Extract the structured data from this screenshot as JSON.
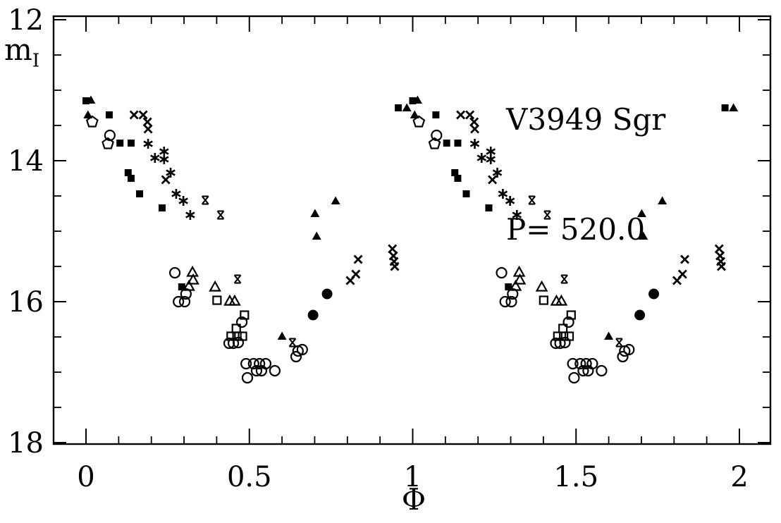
{
  "colors": {
    "foreground": "#000000",
    "background": "#ffffff"
  },
  "chart_data": {
    "type": "scatter",
    "title": "V3949 Sgr",
    "subtitle": "P= 520.0",
    "xlabel": "Φ",
    "ylabel": "m_I",
    "ylabel_base": "m",
    "ylabel_sub": "I",
    "x_axis": "pulsation phase, plotted over two cycles (each point repeated at phase+1)",
    "y_axis": "I-band magnitude, brighter (smaller magnitude) at top",
    "xlim": [
      -0.0993,
      2.095
    ],
    "ylim": [
      11.95,
      18.02
    ],
    "y_inverted_magnitude_axis": true,
    "grid": false,
    "legend": "none",
    "x_major_ticks": [
      0,
      0.5,
      1,
      1.5,
      2
    ],
    "x_tick_labels": [
      "0",
      "0.5",
      "1",
      "1.5",
      "2"
    ],
    "x_minor_step": 0.1,
    "y_major_ticks": [
      12,
      14,
      16,
      18
    ],
    "y_tick_labels": [
      "12",
      "14",
      "16",
      "18"
    ],
    "y_minor_step": 0.5,
    "phase_duplicate_offset": 1.0,
    "series": [
      {
        "name": "filled-squares",
        "marker": "filled-square",
        "points": [
          [
            0.0,
            13.15
          ],
          [
            0.071,
            13.35
          ],
          [
            0.104,
            13.75
          ],
          [
            0.138,
            13.75
          ],
          [
            0.129,
            14.17
          ],
          [
            0.138,
            14.25
          ],
          [
            0.164,
            14.47
          ],
          [
            0.233,
            14.67
          ],
          [
            0.293,
            15.79
          ],
          [
            0.956,
            13.25
          ]
        ]
      },
      {
        "name": "filled-triangles",
        "marker": "filled-triangle",
        "points": [
          [
            0.015,
            13.14
          ],
          [
            0.006,
            13.35
          ],
          [
            0.6,
            16.49
          ],
          [
            0.701,
            14.75
          ],
          [
            0.706,
            15.07
          ],
          [
            0.764,
            14.57
          ],
          [
            0.982,
            13.25
          ]
        ]
      },
      {
        "name": "crosses",
        "marker": "cross",
        "points": [
          [
            0.147,
            13.35
          ],
          [
            0.175,
            13.35
          ],
          [
            0.188,
            13.45
          ],
          [
            0.19,
            13.55
          ],
          [
            0.244,
            14.27
          ],
          [
            0.809,
            15.7
          ],
          [
            0.826,
            15.61
          ],
          [
            0.833,
            15.4
          ],
          [
            0.938,
            15.25
          ],
          [
            0.941,
            15.35
          ],
          [
            0.943,
            15.43
          ],
          [
            0.945,
            15.5
          ]
        ]
      },
      {
        "name": "asterisks",
        "marker": "asterisk",
        "points": [
          [
            0.19,
            13.76
          ],
          [
            0.211,
            13.96
          ],
          [
            0.239,
            13.87
          ],
          [
            0.239,
            13.98
          ],
          [
            0.259,
            14.17
          ],
          [
            0.276,
            14.47
          ],
          [
            0.298,
            14.57
          ],
          [
            0.319,
            14.77
          ]
        ]
      },
      {
        "name": "hourglass-crosses",
        "marker": "hourglass",
        "points": [
          [
            0.365,
            14.56
          ],
          [
            0.412,
            14.77
          ],
          [
            0.464,
            15.68
          ],
          [
            0.632,
            16.58
          ]
        ]
      },
      {
        "name": "open-pentagons",
        "marker": "open-pentagon",
        "points": [
          [
            0.019,
            13.45
          ],
          [
            0.067,
            13.76
          ]
        ]
      },
      {
        "name": "open-circles",
        "marker": "open-circle",
        "points": [
          [
            0.073,
            13.64
          ],
          [
            0.272,
            15.59
          ],
          [
            0.306,
            15.89
          ],
          [
            0.283,
            16.0
          ],
          [
            0.302,
            16.0
          ],
          [
            0.477,
            16.29
          ],
          [
            0.438,
            16.59
          ],
          [
            0.451,
            16.59
          ],
          [
            0.466,
            16.58
          ],
          [
            0.49,
            16.88
          ],
          [
            0.513,
            16.88
          ],
          [
            0.531,
            16.88
          ],
          [
            0.55,
            16.88
          ],
          [
            0.522,
            16.98
          ],
          [
            0.537,
            16.98
          ],
          [
            0.578,
            16.98
          ],
          [
            0.494,
            17.08
          ],
          [
            0.649,
            16.7
          ],
          [
            0.662,
            16.68
          ],
          [
            0.643,
            16.78
          ]
        ]
      },
      {
        "name": "open-triangles",
        "marker": "open-triangle",
        "points": [
          [
            0.326,
            15.58
          ],
          [
            0.328,
            15.69
          ],
          [
            0.315,
            15.78
          ],
          [
            0.395,
            15.79
          ],
          [
            0.44,
            15.99
          ],
          [
            0.455,
            15.99
          ]
        ]
      },
      {
        "name": "open-squares",
        "marker": "open-square",
        "points": [
          [
            0.401,
            15.98
          ],
          [
            0.485,
            16.19
          ],
          [
            0.46,
            16.38
          ],
          [
            0.444,
            16.49
          ],
          [
            0.462,
            16.49
          ],
          [
            0.479,
            16.49
          ]
        ]
      },
      {
        "name": "filled-circles",
        "marker": "filled-circle",
        "points": [
          [
            0.695,
            16.19
          ],
          [
            0.738,
            15.89
          ]
        ]
      }
    ]
  }
}
